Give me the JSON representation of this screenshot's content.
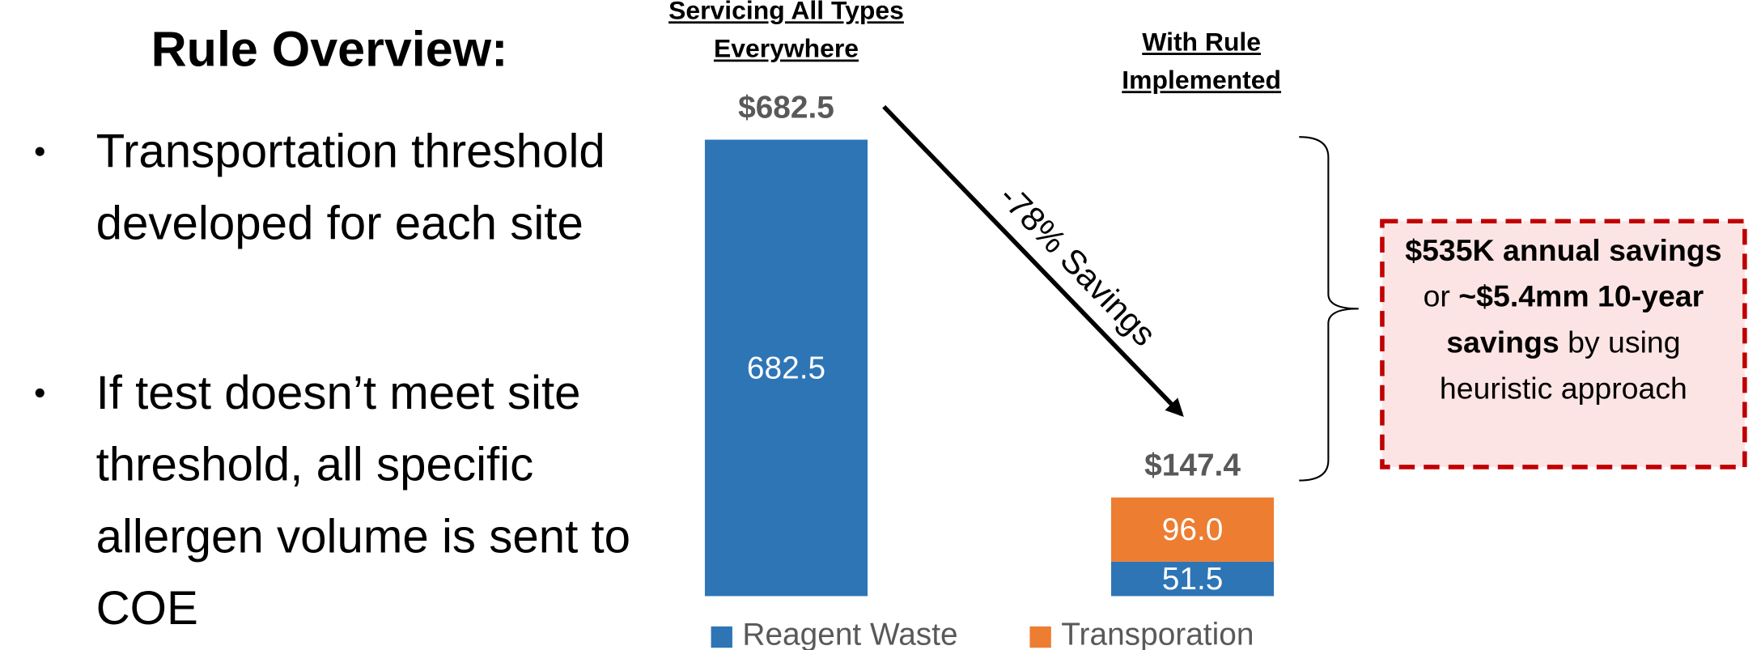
{
  "title": "Rule Overview:",
  "bullets": [
    "Transportation threshold developed for each site",
    "If test doesn’t meet site threshold, all specific allergen volume is sent to COE"
  ],
  "chart_data": {
    "type": "stacked_bar",
    "categories": [
      "Servicing All Types Everywhere",
      "With Rule Implemented"
    ],
    "series": [
      {
        "name": "Reagent Waste",
        "color": "#2e75b6",
        "values": [
          682.5,
          51.5
        ],
        "value_labels": [
          "682.5",
          "51.5"
        ]
      },
      {
        "name": "Transporation",
        "color": "#ed7d31",
        "values": [
          null,
          96.0
        ],
        "value_labels": [
          null,
          "96.0"
        ]
      }
    ],
    "total_labels": [
      "$682.5",
      "$147.4"
    ],
    "ylim": [
      0,
      700
    ],
    "annotation": "-78% Savings",
    "legend": "bottom"
  },
  "callout": [
    {
      "text": "$535K annual savings",
      "bold": true
    },
    {
      "text": " or ",
      "bold": false
    },
    {
      "text": "~$5.4mm 10-year savings",
      "bold": true
    },
    {
      "text": " by using heuristic approach",
      "bold": false
    }
  ]
}
